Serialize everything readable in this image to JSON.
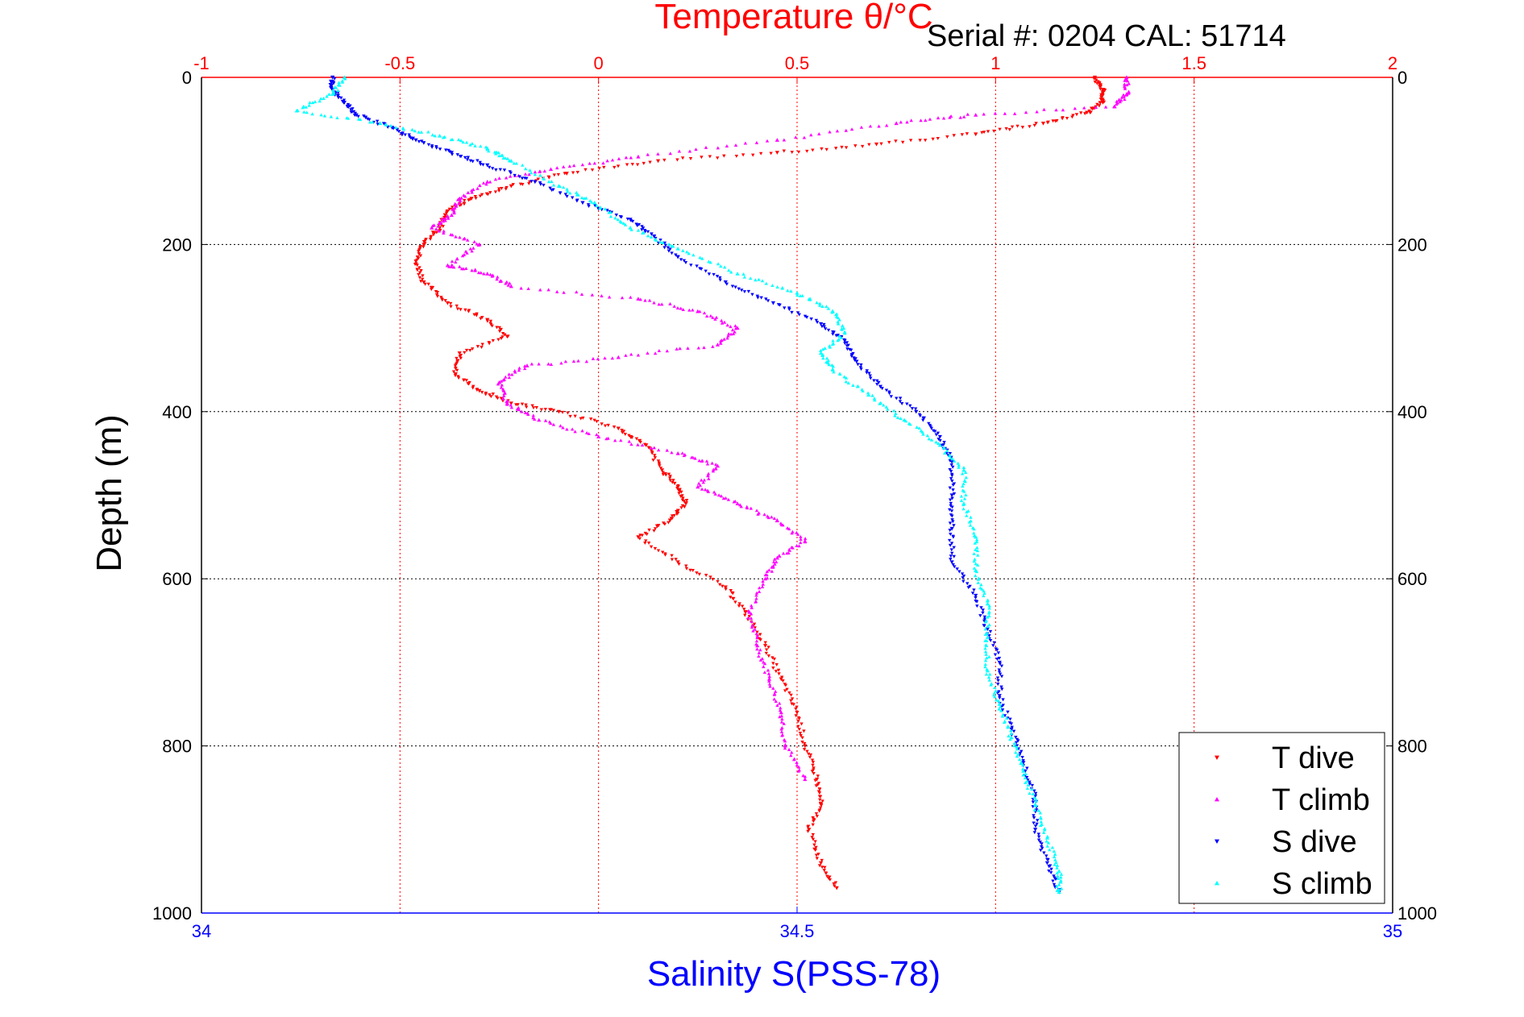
{
  "chart_data": {
    "type": "scatter",
    "serial_label": "Serial #: 0204  CAL: 51714",
    "ylabel": "Depth (m)",
    "ylim": [
      0,
      1000
    ],
    "y_reversed": true,
    "y_ticks": [
      "0",
      "200",
      "400",
      "600",
      "800",
      "1000"
    ],
    "y_tick_values": [
      0,
      200,
      400,
      600,
      800,
      1000
    ],
    "x_top": {
      "label": "Temperature θ/°C",
      "range": [
        -1,
        2
      ],
      "ticks": [
        "-1",
        "-0.5",
        "0",
        "0.5",
        "1",
        "1.5",
        "2"
      ],
      "tick_values": [
        -1,
        -0.5,
        0,
        0.5,
        1,
        1.5,
        2
      ],
      "color": "#ff0000"
    },
    "x_bottom": {
      "label": "Salinity S(PSS-78)",
      "range": [
        34,
        35
      ],
      "ticks": [
        "34",
        "34.5",
        "35"
      ],
      "tick_values": [
        34,
        34.5,
        35
      ],
      "color": "#0000ff"
    },
    "grid": true,
    "legend_position": "bottom-right",
    "series": [
      {
        "name": "T dive",
        "axis": "top",
        "color": "#ff0000",
        "marker": "triangle-down",
        "points": [
          [
            1.25,
            0
          ],
          [
            1.27,
            15
          ],
          [
            1.27,
            30
          ],
          [
            1.23,
            42
          ],
          [
            1.12,
            55
          ],
          [
            0.95,
            68
          ],
          [
            0.7,
            80
          ],
          [
            0.45,
            90
          ],
          [
            0.15,
            100
          ],
          [
            -0.08,
            115
          ],
          [
            -0.22,
            130
          ],
          [
            -0.32,
            145
          ],
          [
            -0.38,
            160
          ],
          [
            -0.4,
            180
          ],
          [
            -0.44,
            200
          ],
          [
            -0.46,
            220
          ],
          [
            -0.44,
            245
          ],
          [
            -0.38,
            270
          ],
          [
            -0.28,
            290
          ],
          [
            -0.23,
            310
          ],
          [
            -0.35,
            330
          ],
          [
            -0.36,
            355
          ],
          [
            -0.3,
            375
          ],
          [
            -0.22,
            390
          ],
          [
            -0.1,
            400
          ],
          [
            0.05,
            420
          ],
          [
            0.12,
            440
          ],
          [
            0.16,
            470
          ],
          [
            0.2,
            490
          ],
          [
            0.22,
            510
          ],
          [
            0.18,
            530
          ],
          [
            0.1,
            550
          ],
          [
            0.2,
            580
          ],
          [
            0.32,
            610
          ],
          [
            0.37,
            640
          ],
          [
            0.42,
            680
          ],
          [
            0.46,
            720
          ],
          [
            0.5,
            760
          ],
          [
            0.52,
            800
          ],
          [
            0.55,
            840
          ],
          [
            0.56,
            870
          ],
          [
            0.53,
            900
          ],
          [
            0.56,
            940
          ],
          [
            0.6,
            970
          ]
        ]
      },
      {
        "name": "T climb",
        "axis": "top",
        "color": "#ff00ff",
        "marker": "triangle-up",
        "points": [
          [
            1.33,
            0
          ],
          [
            1.33,
            20
          ],
          [
            1.3,
            35
          ],
          [
            0.95,
            45
          ],
          [
            0.75,
            55
          ],
          [
            0.45,
            75
          ],
          [
            0.1,
            95
          ],
          [
            -0.12,
            110
          ],
          [
            -0.28,
            125
          ],
          [
            -0.35,
            145
          ],
          [
            -0.37,
            165
          ],
          [
            -0.42,
            180
          ],
          [
            -0.3,
            200
          ],
          [
            -0.38,
            225
          ],
          [
            -0.28,
            235
          ],
          [
            -0.22,
            250
          ],
          [
            0.1,
            265
          ],
          [
            0.25,
            280
          ],
          [
            0.35,
            300
          ],
          [
            0.3,
            320
          ],
          [
            0.05,
            335
          ],
          [
            -0.18,
            345
          ],
          [
            -0.25,
            365
          ],
          [
            -0.23,
            390
          ],
          [
            -0.15,
            410
          ],
          [
            0.0,
            430
          ],
          [
            0.2,
            450
          ],
          [
            0.3,
            465
          ],
          [
            0.25,
            490
          ],
          [
            0.35,
            510
          ],
          [
            0.45,
            530
          ],
          [
            0.52,
            555
          ],
          [
            0.45,
            575
          ],
          [
            0.42,
            600
          ],
          [
            0.38,
            640
          ],
          [
            0.4,
            680
          ],
          [
            0.43,
            720
          ],
          [
            0.46,
            760
          ],
          [
            0.47,
            800
          ],
          [
            0.52,
            840
          ]
        ]
      },
      {
        "name": "S dive",
        "axis": "bottom",
        "color": "#0000ff",
        "marker": "triangle-down",
        "points": [
          [
            34.11,
            0
          ],
          [
            34.11,
            15
          ],
          [
            34.12,
            30
          ],
          [
            34.13,
            45
          ],
          [
            34.16,
            60
          ],
          [
            34.18,
            75
          ],
          [
            34.21,
            90
          ],
          [
            34.24,
            105
          ],
          [
            34.28,
            125
          ],
          [
            34.32,
            150
          ],
          [
            34.36,
            170
          ],
          [
            34.38,
            190
          ],
          [
            34.4,
            215
          ],
          [
            34.44,
            245
          ],
          [
            34.48,
            270
          ],
          [
            34.52,
            295
          ],
          [
            34.54,
            315
          ],
          [
            34.55,
            340
          ],
          [
            34.57,
            370
          ],
          [
            34.6,
            400
          ],
          [
            34.62,
            430
          ],
          [
            34.63,
            460
          ],
          [
            34.63,
            500
          ],
          [
            34.63,
            540
          ],
          [
            34.63,
            580
          ],
          [
            34.65,
            620
          ],
          [
            34.66,
            660
          ],
          [
            34.67,
            700
          ],
          [
            34.67,
            740
          ],
          [
            34.68,
            780
          ],
          [
            34.69,
            820
          ],
          [
            34.7,
            860
          ],
          [
            34.7,
            900
          ],
          [
            34.71,
            940
          ],
          [
            34.72,
            975
          ]
        ]
      },
      {
        "name": "S climb",
        "axis": "bottom",
        "color": "#00ffff",
        "marker": "triangle-up",
        "points": [
          [
            34.12,
            0
          ],
          [
            34.11,
            20
          ],
          [
            34.08,
            40
          ],
          [
            34.15,
            55
          ],
          [
            34.2,
            70
          ],
          [
            34.24,
            85
          ],
          [
            34.26,
            100
          ],
          [
            34.3,
            130
          ],
          [
            34.33,
            150
          ],
          [
            34.36,
            180
          ],
          [
            34.4,
            205
          ],
          [
            34.45,
            235
          ],
          [
            34.5,
            258
          ],
          [
            34.53,
            280
          ],
          [
            34.54,
            305
          ],
          [
            34.52,
            330
          ],
          [
            34.53,
            350
          ],
          [
            34.56,
            380
          ],
          [
            34.59,
            410
          ],
          [
            34.62,
            440
          ],
          [
            34.64,
            470
          ],
          [
            34.64,
            510
          ],
          [
            34.65,
            550
          ],
          [
            34.65,
            590
          ],
          [
            34.66,
            630
          ],
          [
            34.66,
            670
          ],
          [
            34.66,
            710
          ],
          [
            34.67,
            750
          ],
          [
            34.68,
            790
          ],
          [
            34.69,
            830
          ],
          [
            34.7,
            870
          ],
          [
            34.71,
            910
          ],
          [
            34.72,
            950
          ],
          [
            34.72,
            975
          ]
        ]
      }
    ]
  }
}
